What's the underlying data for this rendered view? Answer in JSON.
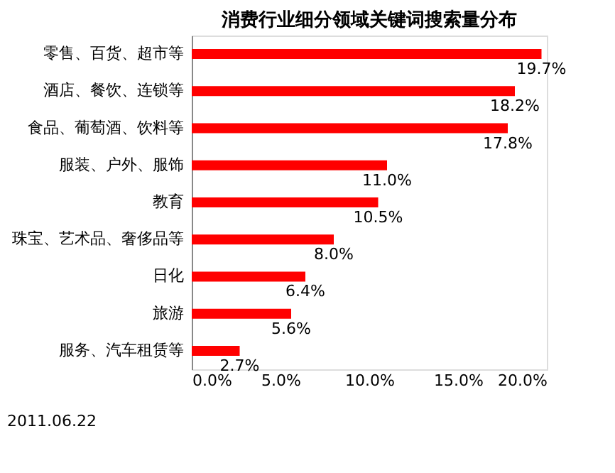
{
  "chart_data": {
    "type": "bar",
    "orientation": "horizontal",
    "title": "消费行业细分领域关键词搜索量分布",
    "categories": [
      "零售、百货、超市等",
      "酒店、餐饮、连锁等",
      "食品、葡萄酒、饮料等",
      "服装、户外、服饰",
      "教育",
      "珠宝、艺术品、奢侈品等",
      "日化",
      "旅游",
      "服务、汽车租赁等"
    ],
    "values": [
      19.7,
      18.2,
      17.8,
      11.0,
      10.5,
      8.0,
      6.4,
      5.6,
      2.7
    ],
    "value_labels": [
      "19.7%",
      "18.2%",
      "17.8%",
      "11.0%",
      "10.5%",
      "8.0%",
      "6.4%",
      "5.6%",
      "2.7%"
    ],
    "color": "#ff0000",
    "xlim": [
      0,
      20
    ],
    "xticks": [
      {
        "value": 0,
        "label": "0.0%"
      },
      {
        "value": 5,
        "label": "5.0%"
      },
      {
        "value": 10,
        "label": "10.0%"
      },
      {
        "value": 15,
        "label": "15.0%"
      },
      {
        "value": 20,
        "label": "20.0%"
      }
    ],
    "annotations": [
      "2011.06.22"
    ],
    "grid": false
  }
}
